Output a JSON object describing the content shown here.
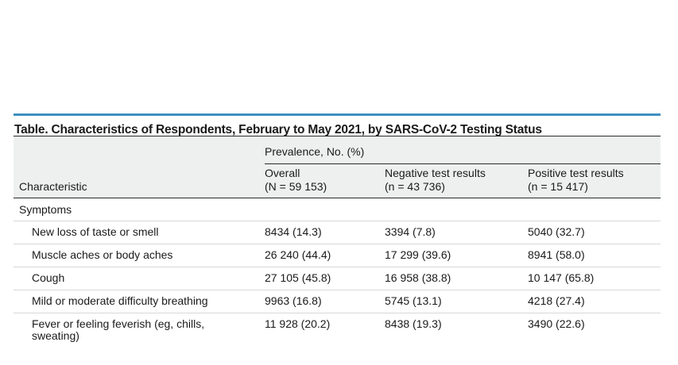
{
  "table": {
    "caption": "Table. Characteristics of Respondents, February to May 2021, by SARS-CoV-2 Testing Status",
    "group_header": "Prevalence, No. (%)",
    "characteristic_header": "Characteristic",
    "columns": [
      {
        "name": "Overall",
        "n": "(N = 59 153)"
      },
      {
        "name": "Negative test results",
        "n": "(n = 43 736)"
      },
      {
        "name": "Positive test results",
        "n": "(n = 15 417)"
      }
    ],
    "section": "Symptoms",
    "rows": [
      {
        "label": "New loss of taste or smell",
        "overall": "8434 (14.3)",
        "negative": "3394 (7.8)",
        "positive": "5040 (32.7)"
      },
      {
        "label": "Muscle aches or body aches",
        "overall": "26 240 (44.4)",
        "negative": "17 299 (39.6)",
        "positive": "8941 (58.0)"
      },
      {
        "label": "Cough",
        "overall": "27 105 (45.8)",
        "negative": "16 958 (38.8)",
        "positive": "10 147 (65.8)"
      },
      {
        "label": "Mild or moderate difficulty breathing",
        "overall": "9963 (16.8)",
        "negative": "5745 (13.1)",
        "positive": "4218 (27.4)"
      },
      {
        "label": "Fever or feeling feverish (eg, chills, sweating)",
        "overall": "11 928 (20.2)",
        "negative": "8438 (19.3)",
        "positive": "3490 (22.6)"
      }
    ]
  }
}
